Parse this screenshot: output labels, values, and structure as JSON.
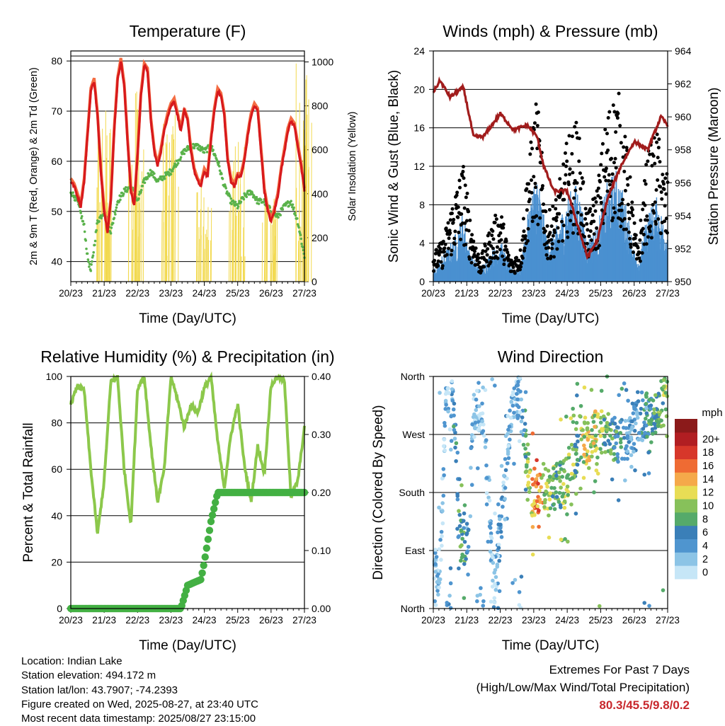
{
  "footer": {
    "location": "Location: Indian Lake",
    "elevation": "Station elevation: 494.172 m",
    "latlon": "Station lat/lon: 43.7907; -74.2393",
    "created": "Figure created on Wed, 2025-08-27, at 23:40 UTC",
    "recent": "Most recent data timestamp: 2025/08/27 23:15:00",
    "extremes_title": "Extremes For Past 7 Days",
    "extremes_sub": "(High/Low/Max Wind/Total Precipitation)",
    "extremes_value": "80.3/45.5/9.8/0.2",
    "extremes_color": "#c8282d"
  },
  "chart_data": [
    {
      "type": "line",
      "title": "Temperature (F)",
      "xlabel": "Time (Day/UTC)",
      "ylabel": "2m & 9m T (Red, Orange) & 2m Td (Green)",
      "y2label": "Solar Insolation (Yellow)",
      "x_ticks": [
        "20/23",
        "21/23",
        "22/23",
        "23/23",
        "24/23",
        "25/23",
        "26/23",
        "27/23"
      ],
      "ylim": [
        36,
        82
      ],
      "y_ticks": [
        40,
        50,
        60,
        70,
        80
      ],
      "y2lim": [
        0,
        1050
      ],
      "y2_ticks": [
        0,
        200,
        400,
        600,
        800,
        1000
      ],
      "series": [
        {
          "name": "2m T",
          "color": "#d7191c",
          "x": [
            0,
            0.1,
            0.2,
            0.3,
            0.4,
            0.5,
            0.6,
            0.7,
            0.8,
            0.9,
            1.0,
            1.1,
            1.2,
            1.3,
            1.4,
            1.5,
            1.6,
            1.7,
            1.8,
            1.9,
            2.0,
            2.1,
            2.2,
            2.3,
            2.4,
            2.5,
            2.6,
            2.7,
            2.8,
            2.9,
            3.0,
            3.1,
            3.2,
            3.3,
            3.4,
            3.5,
            3.6,
            3.7,
            3.8,
            3.9,
            4.0,
            4.1,
            4.2,
            4.3,
            4.4,
            4.5,
            4.6,
            4.7,
            4.8,
            4.9,
            5.0,
            5.1,
            5.2,
            5.3,
            5.4,
            5.5,
            5.6,
            5.7,
            5.8,
            5.9,
            6.0,
            6.1,
            6.2,
            6.3,
            6.4,
            6.5,
            6.6,
            6.7,
            6.8,
            6.9,
            7.0
          ],
          "y": [
            56,
            55,
            53,
            51,
            56,
            65,
            74,
            76,
            69,
            58,
            50,
            46,
            52,
            66,
            76,
            80,
            75,
            64,
            54,
            51,
            61,
            73,
            79,
            78,
            68,
            62,
            59,
            62,
            66,
            69,
            71,
            72,
            69,
            66,
            70,
            68,
            62,
            58,
            56,
            55,
            58,
            57,
            64,
            70,
            74,
            73,
            69,
            60,
            56,
            55,
            57,
            57,
            60,
            65,
            69,
            71,
            70,
            62,
            54,
            50,
            48,
            50,
            53,
            58,
            62,
            66,
            68,
            67,
            63,
            59,
            54
          ]
        },
        {
          "name": "9m T",
          "color": "#f46d43",
          "x": [
            0,
            1,
            2,
            3,
            4,
            5,
            6,
            7
          ],
          "y": [
            56,
            51,
            80,
            79,
            70,
            57,
            50,
            55
          ]
        },
        {
          "name": "2m Td",
          "color": "#5ab24b",
          "x": [
            0,
            0.2,
            0.4,
            0.5,
            0.6,
            0.8,
            1.0,
            1.2,
            1.4,
            1.6,
            1.8,
            2.0,
            2.2,
            2.4,
            2.6,
            2.8,
            3.0,
            3.2,
            3.4,
            3.6,
            3.8,
            4.0,
            4.2,
            4.4,
            4.6,
            4.8,
            5.0,
            5.2,
            5.4,
            5.6,
            5.8,
            6.0,
            6.2,
            6.4,
            6.6,
            6.8,
            7.0
          ],
          "y": [
            54,
            52,
            47,
            41,
            38,
            48,
            50,
            46,
            52,
            54,
            55,
            52,
            56,
            58,
            56,
            57,
            58,
            60,
            62,
            63,
            63,
            62,
            63,
            60,
            55,
            52,
            51,
            53,
            54,
            52,
            52,
            50,
            49,
            51,
            52,
            48,
            41
          ]
        },
        {
          "name": "Solar Insolation",
          "axis": "y2",
          "color": "#f2d94e",
          "x": [
            0.5,
            1.0,
            1.5,
            2.0,
            2.5,
            3.0,
            3.5,
            4.0,
            4.5,
            5.0,
            5.5,
            6.0,
            6.5,
            7.0
          ],
          "y": [
            0,
            780,
            0,
            900,
            0,
            760,
            0,
            450,
            0,
            650,
            0,
            380,
            0,
            1000
          ]
        }
      ]
    },
    {
      "type": "scatter",
      "title": "Winds (mph) & Pressure (mb)",
      "xlabel": "Time (Day/UTC)",
      "ylabel": "Sonic Wind & Gust (Blue, Black)",
      "y2label": "Station Pressure (Maroon)",
      "x_ticks": [
        "20/23",
        "21/23",
        "22/23",
        "23/23",
        "24/23",
        "25/23",
        "26/23",
        "27/23"
      ],
      "ylim": [
        0,
        24
      ],
      "y_ticks": [
        0,
        4,
        8,
        12,
        16,
        20,
        24
      ],
      "y2lim": [
        950,
        964
      ],
      "y2_ticks": [
        950,
        952,
        954,
        956,
        958,
        960,
        962,
        964
      ],
      "series": [
        {
          "name": "Gust",
          "color": "#000000",
          "x": [
            0.1,
            0.3,
            0.6,
            0.9,
            1.1,
            1.4,
            1.7,
            2.0,
            2.3,
            2.6,
            2.9,
            3.1,
            3.4,
            3.7,
            4.0,
            4.3,
            4.6,
            4.9,
            5.2,
            5.5,
            5.8,
            6.1,
            6.4,
            6.7,
            6.9
          ],
          "y": [
            3,
            4,
            8,
            11,
            6,
            2,
            5,
            7,
            2,
            3,
            14,
            17,
            6,
            8,
            13,
            15,
            6,
            9,
            16,
            18,
            12,
            3,
            12,
            14,
            10
          ]
        },
        {
          "name": "Wind",
          "color": "#4a90d0",
          "x": [
            0.1,
            0.3,
            0.6,
            0.9,
            1.1,
            1.4,
            1.7,
            2.0,
            2.3,
            2.6,
            2.9,
            3.1,
            3.4,
            3.7,
            4.0,
            4.3,
            4.6,
            4.9,
            5.2,
            5.5,
            5.8,
            6.1,
            6.4,
            6.7,
            6.9
          ],
          "y": [
            1,
            2,
            3,
            5,
            2,
            1,
            2,
            3,
            1,
            1,
            6,
            8,
            3,
            4,
            6,
            7,
            3,
            4,
            7,
            8,
            5,
            1,
            5,
            6,
            4
          ]
        },
        {
          "name": "Pressure",
          "axis": "y2",
          "color": "#a11c1c",
          "x": [
            0,
            0.2,
            0.5,
            0.9,
            1.2,
            1.5,
            2.0,
            2.4,
            2.8,
            3.1,
            3.3,
            3.6,
            4.0,
            4.3,
            4.6,
            4.9,
            5.2,
            5.6,
            6.0,
            6.4,
            6.8,
            7.0
          ],
          "y": [
            961.5,
            962.2,
            961.2,
            961.8,
            958.8,
            958.8,
            960.2,
            959.2,
            959.5,
            958.8,
            957.0,
            955.5,
            955.5,
            953.5,
            951.5,
            952.5,
            955.0,
            957.0,
            958.5,
            958.0,
            960.0,
            959.5
          ]
        }
      ]
    },
    {
      "type": "line",
      "title": "Relative Humidity (%) & Precipitation (in)",
      "xlabel": "Time (Day/UTC)",
      "ylabel": "Percent & Total Rainfall",
      "x_ticks": [
        "20/23",
        "21/23",
        "22/23",
        "23/23",
        "24/23",
        "25/23",
        "26/23",
        "27/23"
      ],
      "ylim": [
        0,
        100
      ],
      "y_ticks": [
        0,
        20,
        40,
        60,
        80,
        100
      ],
      "y2lim": [
        0,
        0.4
      ],
      "y2_ticks": [
        "0.00",
        "0.10",
        "0.20",
        "0.30",
        "0.40"
      ],
      "series": [
        {
          "name": "Relative Humidity",
          "color": "#8cc84b",
          "x": [
            0,
            0.2,
            0.4,
            0.6,
            0.8,
            1.0,
            1.2,
            1.4,
            1.6,
            1.8,
            2.0,
            2.2,
            2.4,
            2.6,
            2.8,
            3.0,
            3.2,
            3.4,
            3.6,
            3.8,
            4.0,
            4.2,
            4.4,
            4.6,
            4.8,
            5.0,
            5.2,
            5.4,
            5.6,
            5.8,
            6.0,
            6.2,
            6.4,
            6.6,
            6.8,
            7.0
          ],
          "y": [
            88,
            96,
            94,
            60,
            32,
            55,
            98,
            100,
            60,
            36,
            95,
            100,
            70,
            46,
            60,
            100,
            90,
            78,
            88,
            84,
            95,
            100,
            72,
            52,
            75,
            88,
            62,
            46,
            70,
            58,
            96,
            100,
            98,
            48,
            55,
            78
          ]
        },
        {
          "name": "Total Precipitation",
          "axis": "y2",
          "color": "#43b043",
          "x": [
            0,
            1,
            2,
            3,
            3.3,
            3.5,
            3.9,
            4.0,
            4.2,
            4.4,
            5,
            6,
            7
          ],
          "y": [
            0,
            0,
            0,
            0,
            0,
            0.04,
            0.05,
            0.08,
            0.15,
            0.2,
            0.2,
            0.2,
            0.2
          ]
        }
      ]
    },
    {
      "type": "scatter",
      "title": "Wind Direction",
      "xlabel": "Time (Day/UTC)",
      "ylabel": "Direction (Colored By Speed)",
      "x_ticks": [
        "20/23",
        "21/23",
        "22/23",
        "23/23",
        "24/23",
        "25/23",
        "26/23",
        "27/23"
      ],
      "ylim": [
        0,
        360
      ],
      "y_ticks": [
        "North",
        "East",
        "South",
        "West",
        "North"
      ],
      "colorbar": {
        "title": "mph",
        "labels": [
          "0",
          "2",
          "4",
          "6",
          "8",
          "10",
          "12",
          "14",
          "16",
          "18",
          "20+"
        ],
        "colors": [
          "#c6e6f7",
          "#8cc4e6",
          "#4f95cf",
          "#3a7fb8",
          "#55aa6a",
          "#87c15a",
          "#e8dd55",
          "#f5a94a",
          "#ef6b33",
          "#d7372a",
          "#b11e22",
          "#8b1a1a"
        ]
      },
      "series": [
        {
          "name": "Direction",
          "x": [
            0.2,
            0.4,
            0.6,
            0.8,
            1.0,
            1.2,
            1.5,
            1.8,
            2.0,
            2.3,
            2.6,
            2.9,
            3.1,
            3.4,
            3.7,
            4.0,
            4.3,
            4.6,
            4.9,
            5.2,
            5.5,
            5.8,
            6.1,
            6.4,
            6.7,
            6.9
          ],
          "y": [
            60,
            340,
            320,
            110,
            95,
            310,
            300,
            30,
            120,
            290,
            340,
            180,
            175,
            185,
            190,
            200,
            250,
            260,
            275,
            270,
            260,
            255,
            290,
            300,
            310,
            330
          ],
          "speed": [
            1,
            1,
            2,
            4,
            3,
            1,
            1,
            1,
            2,
            1,
            1,
            6,
            8,
            5,
            4,
            5,
            4,
            6,
            5,
            4,
            3,
            2,
            2,
            3,
            4,
            5
          ]
        }
      ]
    }
  ]
}
